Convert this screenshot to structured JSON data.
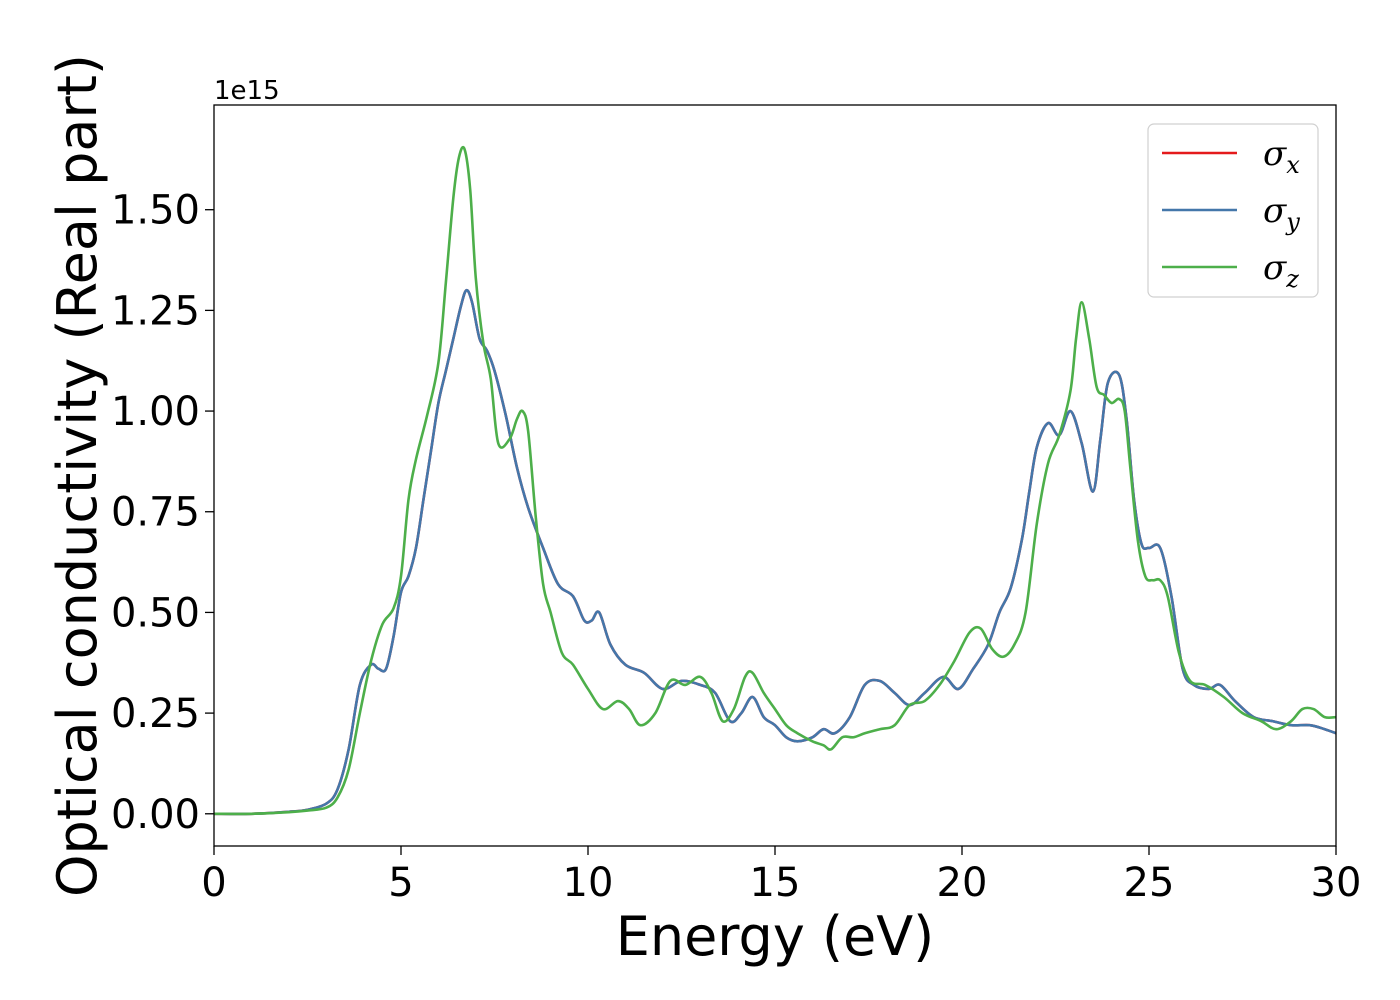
{
  "chart_data": {
    "type": "line",
    "xlabel": "Energy (eV)",
    "ylabel": "Optical conductivity (Real part)",
    "y_offset_text": "1e15",
    "xlim": [
      0,
      30
    ],
    "ylim": [
      -0.08,
      1.76
    ],
    "x_ticks": [
      0,
      5,
      10,
      15,
      20,
      25,
      30
    ],
    "x_tick_labels": [
      "0",
      "5",
      "10",
      "15",
      "20",
      "25",
      "30"
    ],
    "y_ticks": [
      0,
      0.25,
      0.5,
      0.75,
      1.0,
      1.25,
      1.5
    ],
    "y_tick_labels": [
      "0.00",
      "0.25",
      "0.50",
      "0.75",
      "1.00",
      "1.25",
      "1.50"
    ],
    "grid": false,
    "legend_position": "top-right",
    "series": [
      {
        "name": "σx",
        "legend_symbol": "σ",
        "legend_subscript": "x",
        "color": "#e41a1c",
        "x": [
          0,
          1,
          2,
          2.5,
          3.0,
          3.3,
          3.6,
          3.9,
          4.2,
          4.4,
          4.6,
          4.8,
          5.0,
          5.2,
          5.4,
          5.6,
          5.8,
          6.0,
          6.2,
          6.4,
          6.6,
          6.75,
          6.9,
          7.1,
          7.3,
          7.5,
          7.8,
          8.1,
          8.4,
          8.8,
          9.2,
          9.6,
          9.9,
          10.1,
          10.3,
          10.6,
          11.0,
          11.5,
          12.0,
          12.5,
          13.0,
          13.4,
          13.8,
          14.1,
          14.4,
          14.7,
          15.0,
          15.3,
          15.6,
          16.0,
          16.3,
          16.6,
          17.0,
          17.4,
          17.8,
          18.2,
          18.6,
          19.0,
          19.5,
          19.9,
          20.3,
          20.7,
          21.0,
          21.3,
          21.6,
          21.8,
          22.0,
          22.3,
          22.6,
          22.9,
          23.2,
          23.5,
          23.7,
          23.9,
          24.2,
          24.4,
          24.6,
          24.8,
          25.0,
          25.3,
          25.6,
          25.9,
          26.2,
          26.6,
          26.9,
          27.3,
          27.8,
          28.3,
          28.8,
          29.3,
          29.7,
          30.0
        ],
        "y": [
          0,
          0.0,
          0.005,
          0.01,
          0.025,
          0.06,
          0.16,
          0.32,
          0.37,
          0.36,
          0.36,
          0.44,
          0.55,
          0.59,
          0.66,
          0.78,
          0.9,
          1.02,
          1.1,
          1.18,
          1.26,
          1.3,
          1.27,
          1.18,
          1.15,
          1.1,
          0.99,
          0.86,
          0.76,
          0.66,
          0.57,
          0.54,
          0.48,
          0.48,
          0.5,
          0.42,
          0.37,
          0.35,
          0.31,
          0.33,
          0.32,
          0.3,
          0.23,
          0.25,
          0.29,
          0.24,
          0.22,
          0.19,
          0.18,
          0.19,
          0.21,
          0.2,
          0.24,
          0.32,
          0.33,
          0.3,
          0.27,
          0.3,
          0.34,
          0.31,
          0.36,
          0.42,
          0.5,
          0.56,
          0.68,
          0.8,
          0.91,
          0.97,
          0.94,
          1.0,
          0.92,
          0.8,
          0.93,
          1.07,
          1.09,
          0.98,
          0.78,
          0.67,
          0.66,
          0.66,
          0.54,
          0.36,
          0.32,
          0.31,
          0.32,
          0.28,
          0.24,
          0.23,
          0.22,
          0.22,
          0.21,
          0.2
        ]
      },
      {
        "name": "σy",
        "legend_symbol": "σ",
        "legend_subscript": "y",
        "color": "#4477aa",
        "x": [
          0,
          1,
          2,
          2.5,
          3.0,
          3.3,
          3.6,
          3.9,
          4.2,
          4.4,
          4.6,
          4.8,
          5.0,
          5.2,
          5.4,
          5.6,
          5.8,
          6.0,
          6.2,
          6.4,
          6.6,
          6.75,
          6.9,
          7.1,
          7.3,
          7.5,
          7.8,
          8.1,
          8.4,
          8.8,
          9.2,
          9.6,
          9.9,
          10.1,
          10.3,
          10.6,
          11.0,
          11.5,
          12.0,
          12.5,
          13.0,
          13.4,
          13.8,
          14.1,
          14.4,
          14.7,
          15.0,
          15.3,
          15.6,
          16.0,
          16.3,
          16.6,
          17.0,
          17.4,
          17.8,
          18.2,
          18.6,
          19.0,
          19.5,
          19.9,
          20.3,
          20.7,
          21.0,
          21.3,
          21.6,
          21.8,
          22.0,
          22.3,
          22.6,
          22.9,
          23.2,
          23.5,
          23.7,
          23.9,
          24.2,
          24.4,
          24.6,
          24.8,
          25.0,
          25.3,
          25.6,
          25.9,
          26.2,
          26.6,
          26.9,
          27.3,
          27.8,
          28.3,
          28.8,
          29.3,
          29.7,
          30.0
        ],
        "y": [
          0,
          0.0,
          0.005,
          0.01,
          0.025,
          0.06,
          0.16,
          0.32,
          0.37,
          0.36,
          0.36,
          0.44,
          0.55,
          0.59,
          0.66,
          0.78,
          0.9,
          1.02,
          1.1,
          1.18,
          1.26,
          1.3,
          1.27,
          1.18,
          1.15,
          1.1,
          0.99,
          0.86,
          0.76,
          0.66,
          0.57,
          0.54,
          0.48,
          0.48,
          0.5,
          0.42,
          0.37,
          0.35,
          0.31,
          0.33,
          0.32,
          0.3,
          0.23,
          0.25,
          0.29,
          0.24,
          0.22,
          0.19,
          0.18,
          0.19,
          0.21,
          0.2,
          0.24,
          0.32,
          0.33,
          0.3,
          0.27,
          0.3,
          0.34,
          0.31,
          0.36,
          0.42,
          0.5,
          0.56,
          0.68,
          0.8,
          0.91,
          0.97,
          0.94,
          1.0,
          0.92,
          0.8,
          0.93,
          1.07,
          1.09,
          0.98,
          0.78,
          0.67,
          0.66,
          0.66,
          0.54,
          0.36,
          0.32,
          0.31,
          0.32,
          0.28,
          0.24,
          0.23,
          0.22,
          0.22,
          0.21,
          0.2
        ]
      },
      {
        "name": "σz",
        "legend_symbol": "σ",
        "legend_subscript": "z",
        "color": "#4daf4a",
        "x": [
          0,
          1,
          2,
          2.5,
          3.0,
          3.3,
          3.6,
          3.9,
          4.2,
          4.5,
          4.8,
          5.0,
          5.2,
          5.4,
          5.7,
          6.0,
          6.2,
          6.4,
          6.55,
          6.7,
          6.85,
          7.0,
          7.2,
          7.4,
          7.6,
          7.9,
          8.1,
          8.25,
          8.4,
          8.6,
          8.8,
          9.0,
          9.3,
          9.6,
          10.0,
          10.4,
          10.8,
          11.1,
          11.4,
          11.8,
          12.2,
          12.6,
          13.0,
          13.3,
          13.6,
          13.9,
          14.2,
          14.4,
          14.7,
          15.0,
          15.3,
          15.6,
          16.0,
          16.3,
          16.5,
          16.8,
          17.1,
          17.4,
          17.8,
          18.2,
          18.6,
          19.0,
          19.4,
          19.8,
          20.2,
          20.5,
          20.8,
          21.1,
          21.4,
          21.7,
          22.0,
          22.3,
          22.6,
          22.9,
          23.05,
          23.2,
          23.4,
          23.6,
          23.8,
          24.0,
          24.2,
          24.35,
          24.5,
          24.7,
          24.9,
          25.1,
          25.3,
          25.5,
          25.8,
          26.1,
          26.5,
          27.0,
          27.5,
          28.0,
          28.4,
          28.8,
          29.1,
          29.4,
          29.7,
          30.0
        ],
        "y": [
          0,
          0.0,
          0.004,
          0.008,
          0.015,
          0.04,
          0.11,
          0.25,
          0.38,
          0.47,
          0.51,
          0.59,
          0.78,
          0.88,
          0.99,
          1.12,
          1.32,
          1.53,
          1.63,
          1.65,
          1.55,
          1.33,
          1.17,
          1.08,
          0.92,
          0.93,
          0.98,
          1.0,
          0.95,
          0.74,
          0.57,
          0.5,
          0.4,
          0.37,
          0.31,
          0.26,
          0.28,
          0.26,
          0.22,
          0.25,
          0.33,
          0.32,
          0.34,
          0.3,
          0.23,
          0.26,
          0.34,
          0.35,
          0.3,
          0.26,
          0.22,
          0.2,
          0.18,
          0.17,
          0.16,
          0.19,
          0.19,
          0.2,
          0.21,
          0.22,
          0.27,
          0.28,
          0.32,
          0.38,
          0.45,
          0.46,
          0.41,
          0.39,
          0.42,
          0.5,
          0.72,
          0.87,
          0.94,
          1.05,
          1.18,
          1.27,
          1.18,
          1.06,
          1.04,
          1.02,
          1.03,
          1.0,
          0.86,
          0.68,
          0.59,
          0.58,
          0.58,
          0.54,
          0.4,
          0.33,
          0.32,
          0.29,
          0.25,
          0.23,
          0.21,
          0.23,
          0.26,
          0.26,
          0.24,
          0.24
        ]
      }
    ]
  }
}
